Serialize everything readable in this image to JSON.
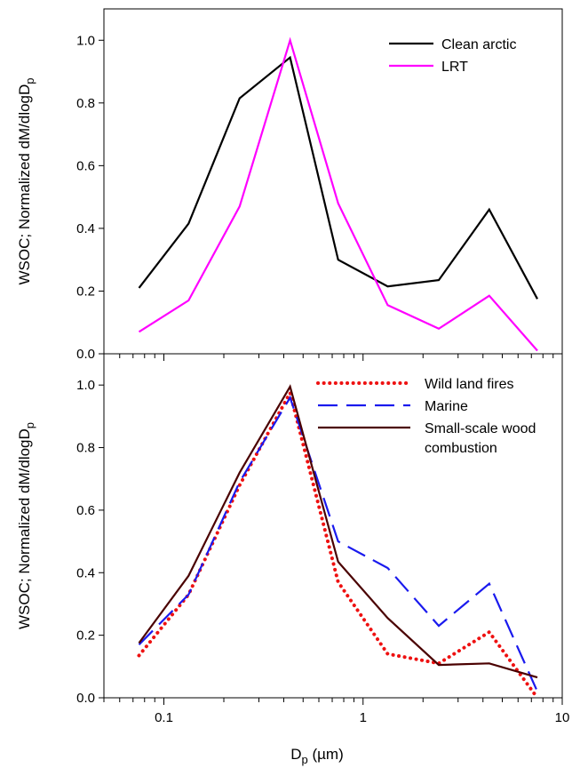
{
  "chart_data": [
    {
      "type": "line",
      "panel": "top",
      "ylabel": {
        "main": "WSOC; Normalized dM/dlogD",
        "sub": "p"
      },
      "xlabel": "",
      "xscale": "log",
      "xlim": [
        0.05,
        10
      ],
      "ylim": [
        0,
        1.1
      ],
      "yticks": [
        "0.0",
        "0.2",
        "0.4",
        "0.6",
        "0.8",
        "1.0"
      ],
      "grid": false,
      "legend_position": "top-right",
      "series": [
        {
          "name": "Clean arctic",
          "color": "#000000",
          "dash": "solid",
          "x": [
            0.075,
            0.133,
            0.24,
            0.43,
            0.75,
            1.33,
            2.4,
            4.3,
            7.5
          ],
          "y": [
            0.21,
            0.415,
            0.815,
            0.945,
            0.3,
            0.215,
            0.235,
            0.46,
            0.175
          ]
        },
        {
          "name": "LRT",
          "color": "#ff00ff",
          "dash": "solid",
          "x": [
            0.075,
            0.133,
            0.24,
            0.43,
            0.75,
            1.33,
            2.4,
            4.3,
            7.5
          ],
          "y": [
            0.07,
            0.17,
            0.47,
            1.0,
            0.48,
            0.155,
            0.08,
            0.185,
            0.01
          ]
        }
      ]
    },
    {
      "type": "line",
      "panel": "bottom",
      "ylabel": {
        "main": "WSOC; Normalized dM/dlogD",
        "sub": "p"
      },
      "xlabel": {
        "main": "D",
        "sub": "p",
        "unit": " (µm)"
      },
      "xscale": "log",
      "xlim": [
        0.05,
        10
      ],
      "ylim": [
        0,
        1.1
      ],
      "xticks": [
        "0.1",
        "1",
        "10"
      ],
      "yticks": [
        "0.0",
        "0.2",
        "0.4",
        "0.6",
        "0.8",
        "1.0"
      ],
      "grid": false,
      "legend_position": "top-right",
      "series": [
        {
          "name": "Wild land fires",
          "color": "#ee1111",
          "dash": "dotted",
          "x": [
            0.075,
            0.133,
            0.24,
            0.43,
            0.75,
            1.33,
            2.4,
            4.3,
            7.5
          ],
          "y": [
            0.135,
            0.33,
            0.68,
            0.975,
            0.37,
            0.14,
            0.11,
            0.21,
            0.0
          ]
        },
        {
          "name": "Marine",
          "color": "#1a1aee",
          "dash": "dashed",
          "x": [
            0.075,
            0.133,
            0.24,
            0.43,
            0.75,
            1.33,
            2.4,
            4.3,
            7.5
          ],
          "y": [
            0.17,
            0.33,
            0.69,
            0.96,
            0.5,
            0.415,
            0.23,
            0.365,
            0.02
          ]
        },
        {
          "name": "Small-scale wood combustion",
          "name_lines": [
            "Small-scale wood",
            "combustion"
          ],
          "color": "#4a0000",
          "dash": "solid",
          "x": [
            0.075,
            0.133,
            0.24,
            0.43,
            0.75,
            1.33,
            2.4,
            4.3,
            7.5
          ],
          "y": [
            0.175,
            0.39,
            0.72,
            0.995,
            0.435,
            0.255,
            0.105,
            0.11,
            0.065
          ]
        }
      ]
    }
  ]
}
